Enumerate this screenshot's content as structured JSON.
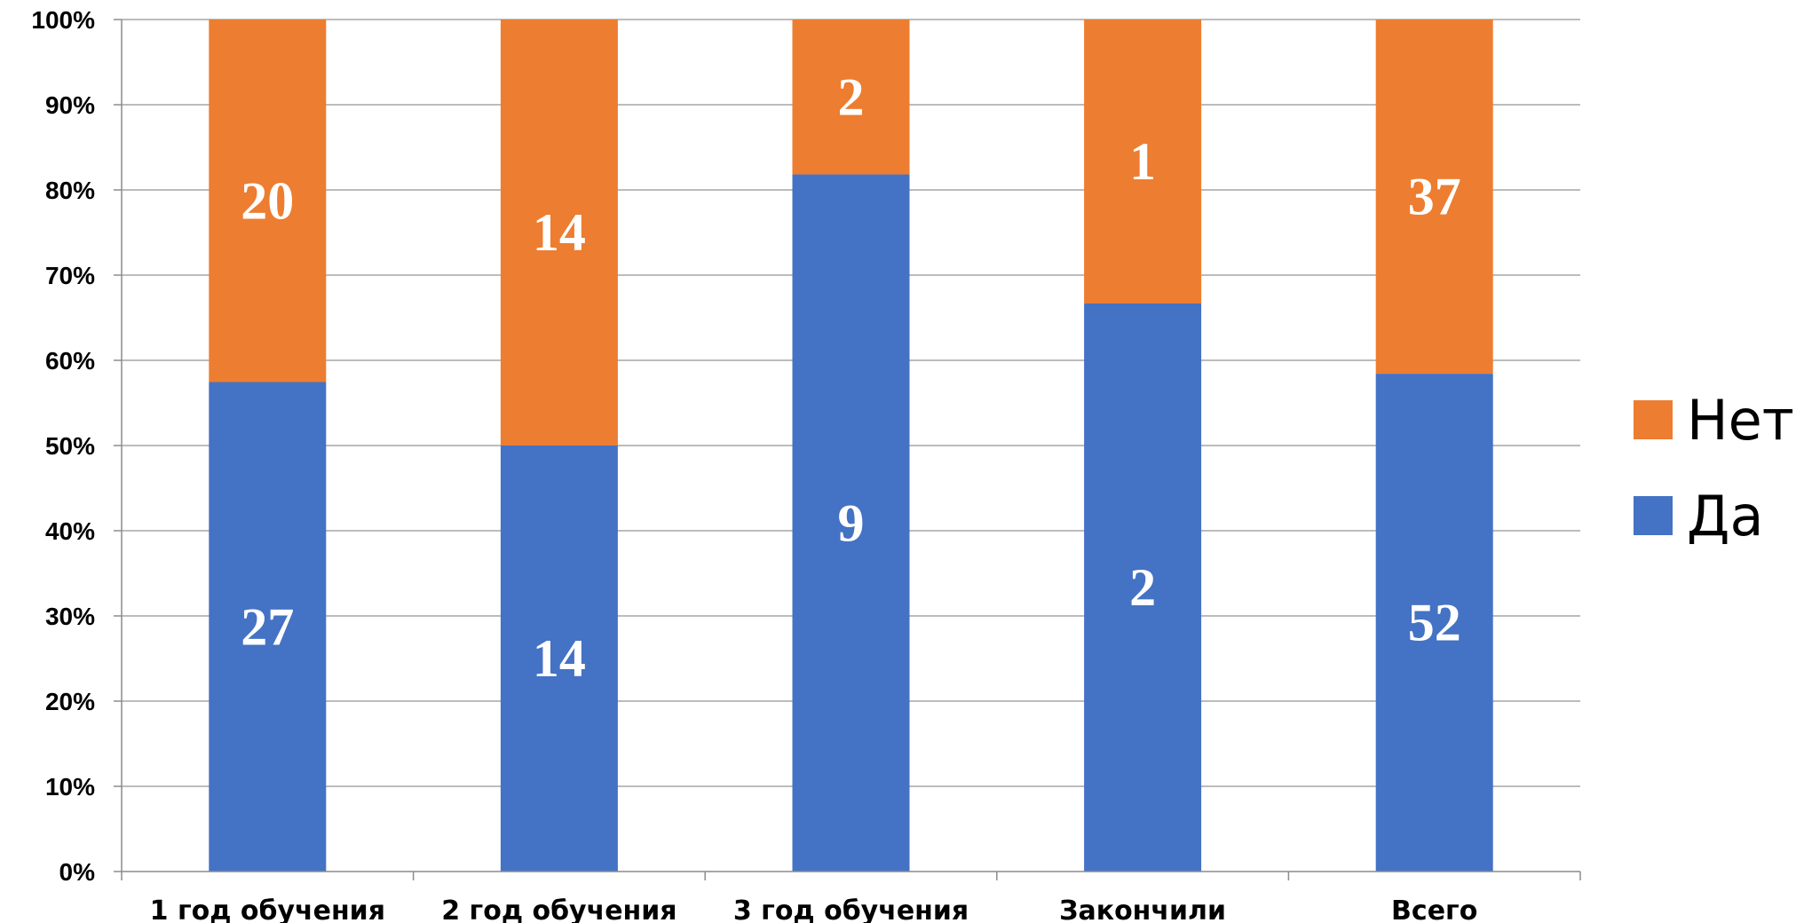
{
  "chart_data": {
    "type": "bar",
    "stacked": true,
    "normalized": true,
    "categories": [
      "1 год обучения",
      "2 год обучения",
      "3 год обучения",
      "Закончили",
      "Всего"
    ],
    "series": [
      {
        "name": "Да",
        "values": [
          27,
          14,
          9,
          2,
          52
        ],
        "color": "#4472C4"
      },
      {
        "name": "Нет",
        "values": [
          20,
          14,
          2,
          1,
          37
        ],
        "color": "#ED7D31"
      }
    ],
    "yticks": [
      "0%",
      "10%",
      "20%",
      "30%",
      "40%",
      "50%",
      "60%",
      "70%",
      "80%",
      "90%",
      "100%"
    ],
    "ylim": [
      0,
      100
    ],
    "grid": true,
    "legend": {
      "placement": "right",
      "items": [
        "Нет",
        "Да"
      ]
    }
  }
}
